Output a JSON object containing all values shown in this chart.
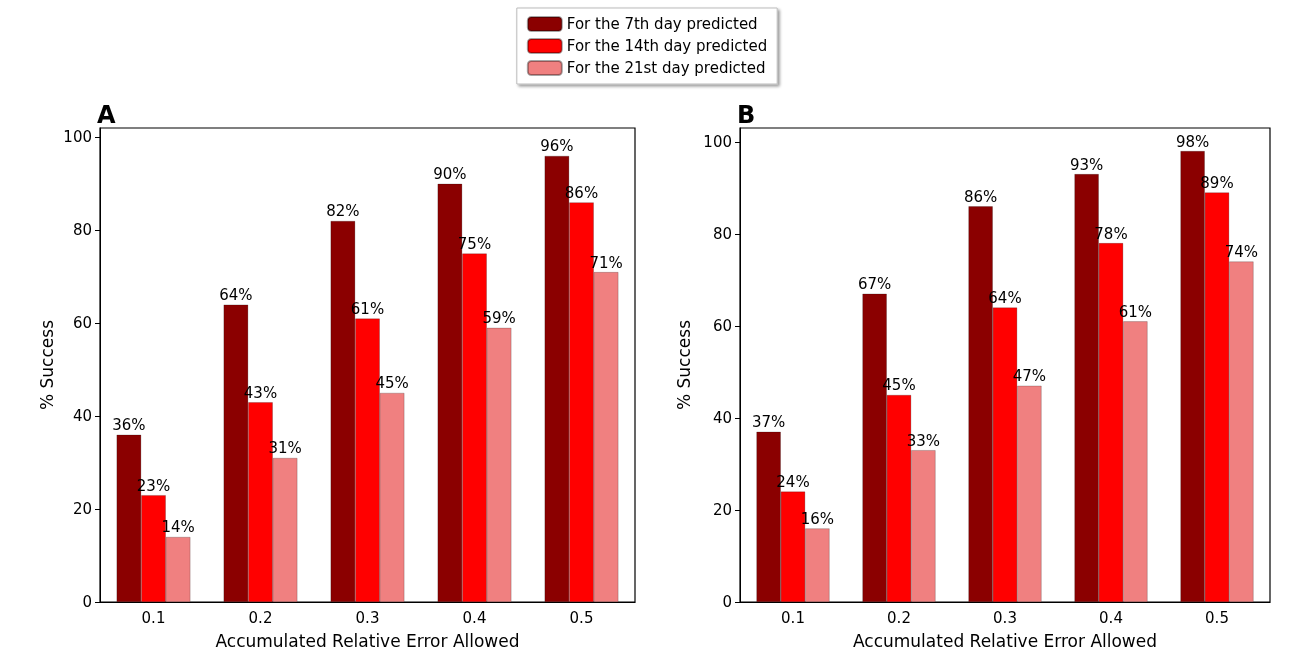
{
  "chart_data": [
    {
      "type": "bar",
      "title": "A",
      "xlabel": "Accumulated Relative Error Allowed",
      "ylabel": "% Success",
      "categories": [
        "0.1",
        "0.2",
        "0.3",
        "0.4",
        "0.5"
      ],
      "ylim": [
        0,
        102
      ],
      "yticks": [
        0,
        20,
        40,
        60,
        80,
        100
      ],
      "grid": false,
      "legend": "top",
      "series": [
        {
          "name": "For the 7th day predicted",
          "color": "#8b0000",
          "values": [
            36,
            64,
            82,
            90,
            96
          ],
          "value_labels": [
            "36%",
            "64%",
            "82%",
            "90%",
            "96%"
          ]
        },
        {
          "name": "For the 14th day predicted",
          "color": "#ff0000",
          "values": [
            23,
            43,
            61,
            75,
            86
          ],
          "value_labels": [
            "23%",
            "43%",
            "61%",
            "75%",
            "86%"
          ]
        },
        {
          "name": "For the 21st day predicted",
          "color": "#f08080",
          "values": [
            14,
            31,
            45,
            59,
            71
          ],
          "value_labels": [
            "14%",
            "31%",
            "45%",
            "59%",
            "71%"
          ]
        }
      ]
    },
    {
      "type": "bar",
      "title": "B",
      "xlabel": "Accumulated Relative Error Allowed",
      "ylabel": "% Success",
      "categories": [
        "0.1",
        "0.2",
        "0.3",
        "0.4",
        "0.5"
      ],
      "ylim": [
        0,
        103
      ],
      "yticks": [
        0,
        20,
        40,
        60,
        80,
        100
      ],
      "grid": false,
      "legend": false,
      "series": [
        {
          "color": "#8b0000",
          "values": [
            37,
            67,
            86,
            93,
            98
          ],
          "value_labels": [
            "37%",
            "67%",
            "86%",
            "93%",
            "98%"
          ]
        },
        {
          "color": "#ff0000",
          "values": [
            24,
            45,
            64,
            78,
            89
          ],
          "value_labels": [
            "24%",
            "45%",
            "64%",
            "78%",
            "89%"
          ]
        },
        {
          "color": "#f08080",
          "values": [
            16,
            33,
            47,
            61,
            74
          ],
          "value_labels": [
            "16%",
            "33%",
            "47%",
            "61%",
            "74%"
          ]
        }
      ]
    }
  ]
}
